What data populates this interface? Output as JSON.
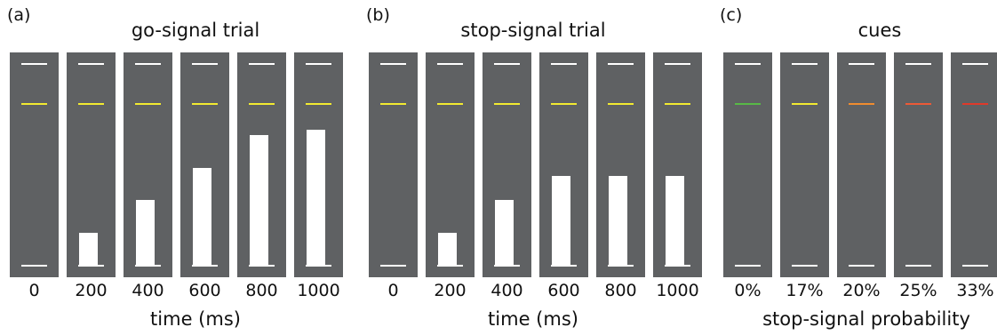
{
  "panels": [
    {
      "letter": "(a)",
      "title": "go-signal trial",
      "footer": "time (ms)",
      "columns": [
        {
          "label": "0",
          "bar_level": 0,
          "cue_color": "#f2ea30"
        },
        {
          "label": "200",
          "bar_level": 0.2,
          "cue_color": "#f2ea30"
        },
        {
          "label": "400",
          "bar_level": 0.4,
          "cue_color": "#f2ea30"
        },
        {
          "label": "600",
          "bar_level": 0.6,
          "cue_color": "#f2ea30"
        },
        {
          "label": "800",
          "bar_level": 0.8,
          "cue_color": "#f2ea30"
        },
        {
          "label": "1000",
          "bar_level": 0.835,
          "cue_color": "#f2ea30"
        }
      ]
    },
    {
      "letter": "(b)",
      "title": "stop-signal trial",
      "footer": "time (ms)",
      "columns": [
        {
          "label": "0",
          "bar_level": 0,
          "cue_color": "#f2ea30"
        },
        {
          "label": "200",
          "bar_level": 0.2,
          "cue_color": "#f2ea30"
        },
        {
          "label": "400",
          "bar_level": 0.4,
          "cue_color": "#f2ea30"
        },
        {
          "label": "600",
          "bar_level": 0.55,
          "cue_color": "#f2ea30"
        },
        {
          "label": "800",
          "bar_level": 0.55,
          "cue_color": "#f2ea30"
        },
        {
          "label": "1000",
          "bar_level": 0.55,
          "cue_color": "#f2ea30"
        }
      ]
    },
    {
      "letter": "(c)",
      "title": "cues",
      "footer": "stop-signal probability",
      "columns": [
        {
          "label": "0%",
          "bar_level": 0,
          "cue_color": "#58b947"
        },
        {
          "label": "17%",
          "bar_level": 0,
          "cue_color": "#f2ea30"
        },
        {
          "label": "20%",
          "bar_level": 0,
          "cue_color": "#f08c2f"
        },
        {
          "label": "25%",
          "bar_level": 0,
          "cue_color": "#ec5a37"
        },
        {
          "label": "33%",
          "bar_level": 0,
          "cue_color": "#e03a2a"
        }
      ]
    }
  ]
}
